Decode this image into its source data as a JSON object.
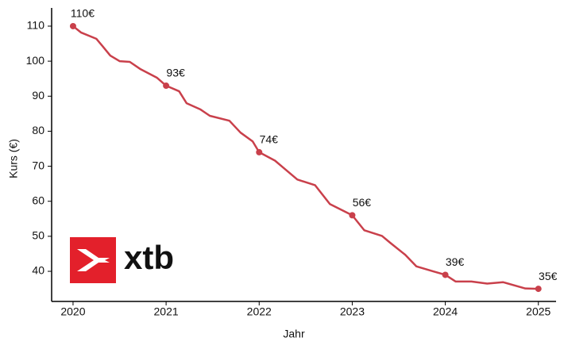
{
  "chart_data": {
    "type": "line",
    "xlabel": "Jahr",
    "ylabel": "Kurs (€)",
    "watermark": "xtb",
    "xlim": [
      2019.77,
      2025.19
    ],
    "ylim": [
      31.4,
      115.2
    ],
    "xticks": [
      2020,
      2021,
      2022,
      2023,
      2024,
      2025
    ],
    "yticks": [
      40,
      50,
      60,
      70,
      80,
      90,
      100,
      110
    ],
    "grid": false,
    "series": [
      {
        "color": "#c9404b",
        "x": [
          2020.0,
          2020.085,
          2020.25,
          2020.31,
          2020.4,
          2020.5,
          2020.61,
          2020.72,
          2020.9,
          2021.0,
          2021.14,
          2021.22,
          2021.37,
          2021.47,
          2021.68,
          2021.8,
          2021.93,
          2022.0,
          2022.17,
          2022.25,
          2022.41,
          2022.6,
          2022.76,
          2023.0,
          2023.13,
          2023.32,
          2023.41,
          2023.57,
          2023.69,
          2023.87,
          2024.0,
          2024.11,
          2024.28,
          2024.45,
          2024.62,
          2024.86,
          2025.0
        ],
        "values": [
          110,
          108.2,
          106.4,
          104.5,
          101.6,
          100,
          99.8,
          97.8,
          95.3,
          93,
          91.4,
          88,
          86.2,
          84.4,
          83,
          79.6,
          77.1,
          74,
          71.6,
          69.8,
          66.2,
          64.6,
          59.2,
          56,
          51.7,
          50.1,
          48.1,
          44.7,
          41.4,
          40,
          39,
          37.1,
          37.1,
          36.5,
          36.9,
          35.1,
          35
        ]
      }
    ],
    "annotations": [
      {
        "x": 2020,
        "y": 110,
        "label": "110€"
      },
      {
        "x": 2021,
        "y": 93,
        "label": "93€"
      },
      {
        "x": 2022,
        "y": 74,
        "label": "74€"
      },
      {
        "x": 2023,
        "y": 56,
        "label": "56€"
      },
      {
        "x": 2024,
        "y": 39,
        "label": "39€"
      },
      {
        "x": 2025,
        "y": 35,
        "label": "35€"
      }
    ]
  }
}
